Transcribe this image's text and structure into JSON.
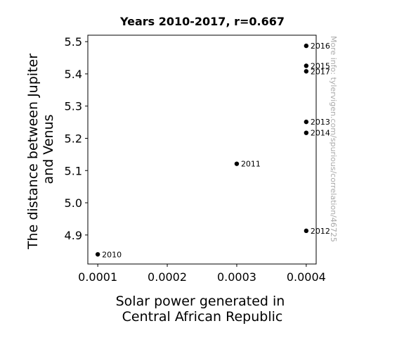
{
  "chart_data": {
    "type": "scatter",
    "title": "Years 2010-2017, r=0.667",
    "xlabel": [
      "Solar power generated in",
      "Central African Republic"
    ],
    "ylabel": [
      "The distance between Jupiter",
      "and Venus"
    ],
    "xlim": [
      8.57e-05,
      0.0004143
    ],
    "ylim": [
      4.81,
      5.52
    ],
    "xticks": [
      {
        "value": 0.0001,
        "label": "0.0001"
      },
      {
        "value": 0.0002,
        "label": "0.0002"
      },
      {
        "value": 0.0003,
        "label": "0.0003"
      },
      {
        "value": 0.0004,
        "label": "0.0004"
      }
    ],
    "yticks": [
      {
        "value": 4.9,
        "label": "4.9"
      },
      {
        "value": 5.0,
        "label": "5.0"
      },
      {
        "value": 5.1,
        "label": "5.1"
      },
      {
        "value": 5.2,
        "label": "5.2"
      },
      {
        "value": 5.3,
        "label": "5.3"
      },
      {
        "value": 5.4,
        "label": "5.4"
      },
      {
        "value": 5.5,
        "label": "5.5"
      }
    ],
    "points": [
      {
        "x": 0.0001,
        "y": 4.84,
        "label": "2010"
      },
      {
        "x": 0.0003,
        "y": 5.121,
        "label": "2011"
      },
      {
        "x": 0.0004,
        "y": 4.913,
        "label": "2012"
      },
      {
        "x": 0.0004,
        "y": 5.251,
        "label": "2013"
      },
      {
        "x": 0.0004,
        "y": 5.217,
        "label": "2014"
      },
      {
        "x": 0.0004,
        "y": 5.425,
        "label": "2015"
      },
      {
        "x": 0.0004,
        "y": 5.487,
        "label": "2016"
      },
      {
        "x": 0.0004,
        "y": 5.408,
        "label": "2017"
      }
    ],
    "grid": false,
    "point_color": "#000000"
  },
  "watermark": "More info: tylervigen.com/spurious/correlation/46725"
}
